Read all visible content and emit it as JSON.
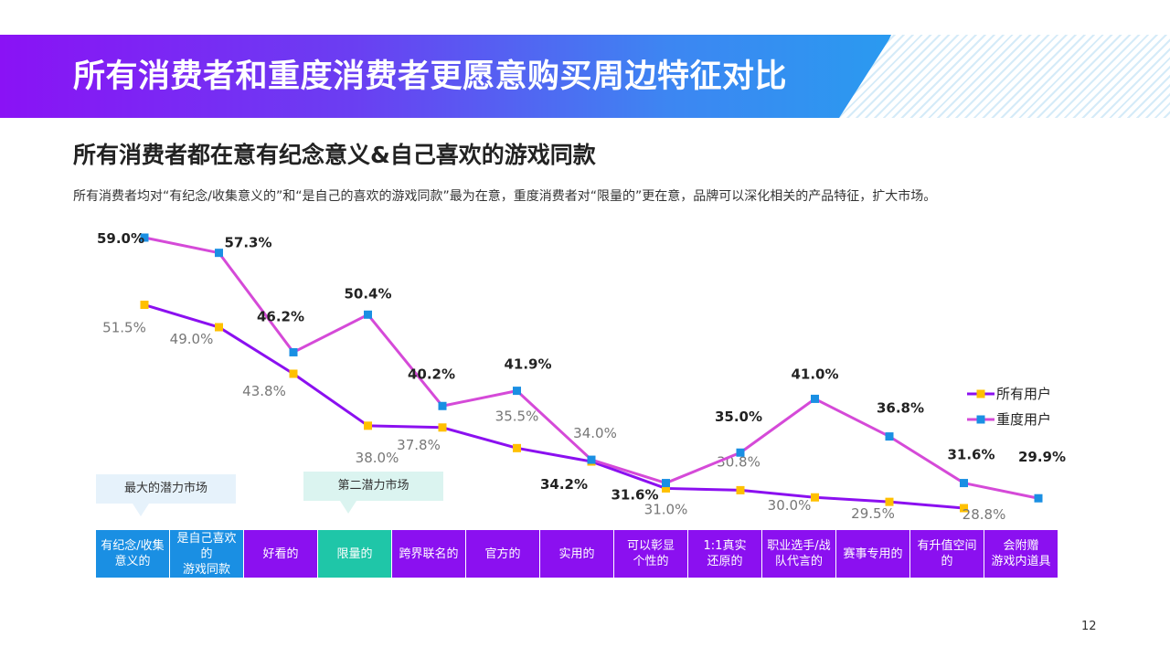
{
  "header": {
    "title": "所有消费者和重度消费者更愿意购买周边特征对比"
  },
  "subtitle": "所有消费者都在意有纪念意义&自己喜欢的游戏同款",
  "description": "所有消费者均对“有纪念/收集意义的”和“是自己的喜欢的游戏同款”最为在意，重度消费者对“限量的”更在意，品牌可以深化相关的产品特征，扩大市场。",
  "callouts": [
    {
      "label": "最大的潜力市场"
    },
    {
      "label": "第二潜力市场"
    }
  ],
  "page_number": "12",
  "colors": {
    "all_users_line": "#8b10f0",
    "all_users_marker": "#ffc000",
    "heavy_users_line": "#d54ad8",
    "heavy_users_marker": "#1a8fe3",
    "cat_blue": "#1a8fe3",
    "cat_purple": "#8b10f0",
    "cat_teal": "#1fc6a8"
  },
  "chart_data": {
    "type": "line",
    "categories": [
      "有纪念/收集\n意义的",
      "是自己喜欢的\n游戏同款",
      "好看的",
      "限量的",
      "跨界联名的",
      "官方的",
      "实用的",
      "可以彰显\n个性的",
      "1:1真实\n还原的",
      "职业选手/战\n队代言的",
      "赛事专用的",
      "有升值空间的",
      "会附赠\n游戏内道具"
    ],
    "category_colors": [
      "blue",
      "blue",
      "purple",
      "teal",
      "purple",
      "purple",
      "purple",
      "purple",
      "purple",
      "purple",
      "purple",
      "purple",
      "purple"
    ],
    "series": [
      {
        "name": "所有用户",
        "values": [
          51.5,
          49.0,
          43.8,
          38.0,
          37.8,
          35.5,
          34.0,
          31.0,
          30.8,
          30.0,
          29.5,
          28.8,
          null
        ],
        "labels": [
          "51.5%",
          "49.0%",
          "43.8%",
          "38.0%",
          "37.8%",
          "35.5%",
          "34.0%",
          "31.0%",
          "30.8%",
          "30.0%",
          "29.5%",
          "28.8%",
          ""
        ]
      },
      {
        "name": "重度用户",
        "values": [
          59.0,
          57.3,
          46.2,
          50.4,
          40.2,
          41.9,
          34.2,
          31.6,
          35.0,
          41.0,
          36.8,
          31.6,
          29.9
        ],
        "labels": [
          "59.0%",
          "57.3%",
          "46.2%",
          "50.4%",
          "40.2%",
          "41.9%",
          "34.2%",
          "31.6%",
          "35.0%",
          "41.0%",
          "36.8%",
          "31.6%",
          "29.9%"
        ]
      }
    ],
    "legend_position": "right",
    "grid": false
  }
}
